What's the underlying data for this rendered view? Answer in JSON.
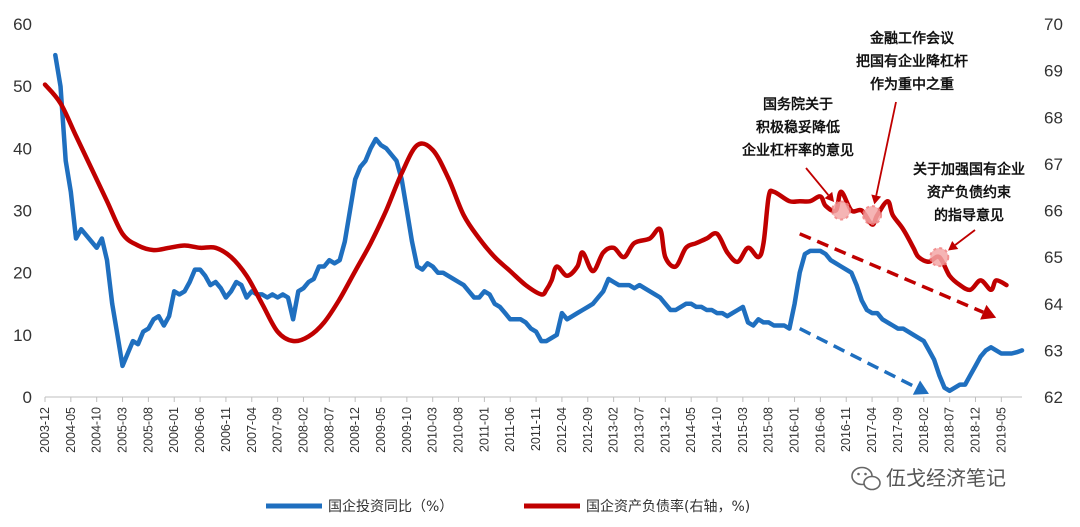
{
  "chart_data": {
    "type": "line",
    "y_left": {
      "min": 0,
      "max": 60,
      "ticks": [
        0,
        10,
        20,
        30,
        40,
        50,
        60
      ]
    },
    "y_right": {
      "min": 62,
      "max": 70,
      "ticks": [
        62,
        63,
        64,
        65,
        66,
        67,
        68,
        69,
        70
      ]
    },
    "x_range": [
      "2003-12",
      "2019-09"
    ],
    "x_ticks": [
      "2003-12",
      "2004-05",
      "2004-10",
      "2005-03",
      "2005-08",
      "2006-01",
      "2006-06",
      "2006-11",
      "2007-04",
      "2007-09",
      "2008-02",
      "2008-07",
      "2008-12",
      "2009-05",
      "2009-10",
      "2010-03",
      "2010-08",
      "2011-01",
      "2011-06",
      "2011-11",
      "2012-04",
      "2012-09",
      "2013-02",
      "2013-07",
      "2013-12",
      "2014-05",
      "2014-10",
      "2015-03",
      "2015-08",
      "2016-01",
      "2016-06",
      "2016-11",
      "2017-04",
      "2017-09",
      "2018-02",
      "2018-07",
      "2018-12",
      "2019-05"
    ],
    "grid": false,
    "legend_position": "bottom",
    "series": [
      {
        "name": "国企投资同比（%）",
        "axis": "left",
        "color": "#1f6fbf",
        "points": [
          [
            "2004-02",
            55
          ],
          [
            "2004-03",
            50
          ],
          [
            "2004-04",
            38
          ],
          [
            "2004-05",
            33
          ],
          [
            "2004-06",
            25.5
          ],
          [
            "2004-07",
            27
          ],
          [
            "2004-08",
            26
          ],
          [
            "2004-09",
            25
          ],
          [
            "2004-10",
            24
          ],
          [
            "2004-11",
            25.5
          ],
          [
            "2004-12",
            22
          ],
          [
            "2005-01",
            15
          ],
          [
            "2005-02",
            10
          ],
          [
            "2005-03",
            5
          ],
          [
            "2005-04",
            7
          ],
          [
            "2005-05",
            9
          ],
          [
            "2005-06",
            8.5
          ],
          [
            "2005-07",
            10.5
          ],
          [
            "2005-08",
            11
          ],
          [
            "2005-09",
            12.5
          ],
          [
            "2005-10",
            13
          ],
          [
            "2005-11",
            11.5
          ],
          [
            "2005-12",
            13
          ],
          [
            "2006-01",
            17
          ],
          [
            "2006-02",
            16.5
          ],
          [
            "2006-03",
            17
          ],
          [
            "2006-04",
            18.5
          ],
          [
            "2006-05",
            20.5
          ],
          [
            "2006-06",
            20.5
          ],
          [
            "2006-07",
            19.5
          ],
          [
            "2006-08",
            18
          ],
          [
            "2006-09",
            18.5
          ],
          [
            "2006-10",
            17.5
          ],
          [
            "2006-11",
            16
          ],
          [
            "2006-12",
            17
          ],
          [
            "2007-01",
            18.5
          ],
          [
            "2007-02",
            18
          ],
          [
            "2007-03",
            16
          ],
          [
            "2007-04",
            17
          ],
          [
            "2007-05",
            16.5
          ],
          [
            "2007-06",
            16.5
          ],
          [
            "2007-07",
            16
          ],
          [
            "2007-08",
            16.5
          ],
          [
            "2007-09",
            16
          ],
          [
            "2007-10",
            16.5
          ],
          [
            "2007-11",
            16
          ],
          [
            "2007-12",
            12.5
          ],
          [
            "2008-01",
            17
          ],
          [
            "2008-02",
            17.5
          ],
          [
            "2008-03",
            18.5
          ],
          [
            "2008-04",
            19
          ],
          [
            "2008-05",
            21
          ],
          [
            "2008-06",
            21
          ],
          [
            "2008-07",
            22
          ],
          [
            "2008-08",
            21.5
          ],
          [
            "2008-09",
            22
          ],
          [
            "2008-10",
            25
          ],
          [
            "2008-11",
            30
          ],
          [
            "2008-12",
            35
          ],
          [
            "2009-01",
            37
          ],
          [
            "2009-02",
            38
          ],
          [
            "2009-03",
            40
          ],
          [
            "2009-04",
            41.5
          ],
          [
            "2009-05",
            40.5
          ],
          [
            "2009-06",
            40
          ],
          [
            "2009-07",
            39
          ],
          [
            "2009-08",
            38
          ],
          [
            "2009-09",
            35
          ],
          [
            "2009-10",
            30
          ],
          [
            "2009-11",
            25
          ],
          [
            "2009-12",
            21
          ],
          [
            "2010-01",
            20.5
          ],
          [
            "2010-02",
            21.5
          ],
          [
            "2010-03",
            21
          ],
          [
            "2010-04",
            20
          ],
          [
            "2010-05",
            20
          ],
          [
            "2010-06",
            19.5
          ],
          [
            "2010-07",
            19
          ],
          [
            "2010-08",
            18.5
          ],
          [
            "2010-09",
            18
          ],
          [
            "2010-10",
            17
          ],
          [
            "2010-11",
            16
          ],
          [
            "2010-12",
            16
          ],
          [
            "2011-01",
            17
          ],
          [
            "2011-02",
            16.5
          ],
          [
            "2011-03",
            15
          ],
          [
            "2011-04",
            14.5
          ],
          [
            "2011-05",
            13.5
          ],
          [
            "2011-06",
            12.5
          ],
          [
            "2011-07",
            12.5
          ],
          [
            "2011-08",
            12.5
          ],
          [
            "2011-09",
            12
          ],
          [
            "2011-10",
            11
          ],
          [
            "2011-11",
            10.5
          ],
          [
            "2011-12",
            9
          ],
          [
            "2012-01",
            9
          ],
          [
            "2012-02",
            9.5
          ],
          [
            "2012-03",
            10
          ],
          [
            "2012-04",
            13.5
          ],
          [
            "2012-05",
            12.5
          ],
          [
            "2012-06",
            13
          ],
          [
            "2012-07",
            13.5
          ],
          [
            "2012-08",
            14
          ],
          [
            "2012-09",
            14.5
          ],
          [
            "2012-10",
            15
          ],
          [
            "2012-11",
            16
          ],
          [
            "2012-12",
            17
          ],
          [
            "2013-01",
            19
          ],
          [
            "2013-02",
            18.5
          ],
          [
            "2013-03",
            18
          ],
          [
            "2013-04",
            18
          ],
          [
            "2013-05",
            18
          ],
          [
            "2013-06",
            17.5
          ],
          [
            "2013-07",
            18
          ],
          [
            "2013-08",
            17.5
          ],
          [
            "2013-09",
            17
          ],
          [
            "2013-10",
            16.5
          ],
          [
            "2013-11",
            16
          ],
          [
            "2013-12",
            15
          ],
          [
            "2014-01",
            14
          ],
          [
            "2014-02",
            14
          ],
          [
            "2014-03",
            14.5
          ],
          [
            "2014-04",
            15
          ],
          [
            "2014-05",
            15
          ],
          [
            "2014-06",
            14.5
          ],
          [
            "2014-07",
            14.5
          ],
          [
            "2014-08",
            14
          ],
          [
            "2014-09",
            14
          ],
          [
            "2014-10",
            13.5
          ],
          [
            "2014-11",
            13.5
          ],
          [
            "2014-12",
            13
          ],
          [
            "2015-01",
            13.5
          ],
          [
            "2015-02",
            14
          ],
          [
            "2015-03",
            14.5
          ],
          [
            "2015-04",
            12
          ],
          [
            "2015-05",
            11.5
          ],
          [
            "2015-06",
            12.5
          ],
          [
            "2015-07",
            12
          ],
          [
            "2015-08",
            12
          ],
          [
            "2015-09",
            11.5
          ],
          [
            "2015-10",
            11.5
          ],
          [
            "2015-11",
            11.5
          ],
          [
            "2015-12",
            11
          ],
          [
            "2016-01",
            15
          ],
          [
            "2016-02",
            20
          ],
          [
            "2016-03",
            23
          ],
          [
            "2016-04",
            23.5
          ],
          [
            "2016-05",
            23.5
          ],
          [
            "2016-06",
            23.5
          ],
          [
            "2016-07",
            23
          ],
          [
            "2016-08",
            22
          ],
          [
            "2016-09",
            21.5
          ],
          [
            "2016-10",
            21
          ],
          [
            "2016-11",
            20.5
          ],
          [
            "2016-12",
            20
          ],
          [
            "2017-01",
            18
          ],
          [
            "2017-02",
            15.5
          ],
          [
            "2017-03",
            14
          ],
          [
            "2017-04",
            13.5
          ],
          [
            "2017-05",
            13.5
          ],
          [
            "2017-06",
            12.5
          ],
          [
            "2017-07",
            12
          ],
          [
            "2017-08",
            11.5
          ],
          [
            "2017-09",
            11
          ],
          [
            "2017-10",
            11
          ],
          [
            "2017-11",
            10.5
          ],
          [
            "2017-12",
            10
          ],
          [
            "2018-01",
            9.5
          ],
          [
            "2018-02",
            9
          ],
          [
            "2018-03",
            7.5
          ],
          [
            "2018-04",
            6
          ],
          [
            "2018-05",
            3.5
          ],
          [
            "2018-06",
            1.5
          ],
          [
            "2018-07",
            1
          ],
          [
            "2018-08",
            1.5
          ],
          [
            "2018-09",
            2
          ],
          [
            "2018-10",
            2
          ],
          [
            "2018-11",
            3.5
          ],
          [
            "2018-12",
            5
          ],
          [
            "2019-01",
            6.5
          ],
          [
            "2019-02",
            7.5
          ],
          [
            "2019-03",
            8
          ],
          [
            "2019-04",
            7.5
          ],
          [
            "2019-05",
            7
          ],
          [
            "2019-06",
            7
          ],
          [
            "2019-07",
            7
          ],
          [
            "2019-08",
            7.2
          ],
          [
            "2019-09",
            7.5
          ]
        ]
      },
      {
        "name": "国企资产负债率(右轴，%)",
        "axis": "right",
        "color": "#c00000",
        "points": [
          [
            "2003-12",
            68.7
          ],
          [
            "2004-03",
            68.3
          ],
          [
            "2004-06",
            67.6
          ],
          [
            "2004-09",
            66.9
          ],
          [
            "2004-12",
            66.2
          ],
          [
            "2005-03",
            65.5
          ],
          [
            "2005-06",
            65.25
          ],
          [
            "2005-09",
            65.15
          ],
          [
            "2005-12",
            65.2
          ],
          [
            "2006-03",
            65.25
          ],
          [
            "2006-06",
            65.2
          ],
          [
            "2006-09",
            65.2
          ],
          [
            "2006-12",
            65.0
          ],
          [
            "2007-03",
            64.6
          ],
          [
            "2007-06",
            64.0
          ],
          [
            "2007-09",
            63.4
          ],
          [
            "2007-12",
            63.2
          ],
          [
            "2008-03",
            63.3
          ],
          [
            "2008-06",
            63.6
          ],
          [
            "2008-09",
            64.1
          ],
          [
            "2008-12",
            64.7
          ],
          [
            "2009-03",
            65.3
          ],
          [
            "2009-06",
            66.0
          ],
          [
            "2009-09",
            66.8
          ],
          [
            "2009-12",
            67.4
          ],
          [
            "2010-03",
            67.3
          ],
          [
            "2010-06",
            66.7
          ],
          [
            "2010-09",
            65.9
          ],
          [
            "2010-12",
            65.4
          ],
          [
            "2011-03",
            65.0
          ],
          [
            "2011-06",
            64.7
          ],
          [
            "2011-09",
            64.4
          ],
          [
            "2011-12",
            64.2
          ],
          [
            "2012-01",
            64.3
          ],
          [
            "2012-02",
            64.5
          ],
          [
            "2012-03",
            64.8
          ],
          [
            "2012-05",
            64.6
          ],
          [
            "2012-07",
            64.8
          ],
          [
            "2012-08",
            65.1
          ],
          [
            "2012-10",
            64.7
          ],
          [
            "2012-12",
            65.1
          ],
          [
            "2013-02",
            65.2
          ],
          [
            "2013-04",
            65.0
          ],
          [
            "2013-06",
            65.3
          ],
          [
            "2013-09",
            65.4
          ],
          [
            "2013-11",
            65.6
          ],
          [
            "2013-12",
            65.0
          ],
          [
            "2014-02",
            64.8
          ],
          [
            "2014-04",
            65.2
          ],
          [
            "2014-06",
            65.3
          ],
          [
            "2014-08",
            65.4
          ],
          [
            "2014-10",
            65.5
          ],
          [
            "2014-12",
            65.1
          ],
          [
            "2015-02",
            64.9
          ],
          [
            "2015-04",
            65.2
          ],
          [
            "2015-06",
            65.0
          ],
          [
            "2015-07",
            65.3
          ],
          [
            "2015-08",
            66.3
          ],
          [
            "2015-09",
            66.4
          ],
          [
            "2015-12",
            66.2
          ],
          [
            "2016-02",
            66.2
          ],
          [
            "2016-04",
            66.2
          ],
          [
            "2016-06",
            66.3
          ],
          [
            "2016-07",
            66.1
          ],
          [
            "2016-09",
            66.0
          ],
          [
            "2016-10",
            66.4
          ],
          [
            "2016-12",
            66.0
          ],
          [
            "2017-02",
            66.0
          ],
          [
            "2017-04",
            65.7
          ],
          [
            "2017-05",
            65.9
          ],
          [
            "2017-07",
            66.2
          ],
          [
            "2017-08",
            65.9
          ],
          [
            "2017-10",
            65.6
          ],
          [
            "2017-12",
            65.2
          ],
          [
            "2018-01",
            65.0
          ],
          [
            "2018-03",
            64.9
          ],
          [
            "2018-05",
            65.0
          ],
          [
            "2018-07",
            64.6
          ],
          [
            "2018-09",
            64.4
          ],
          [
            "2018-11",
            64.3
          ],
          [
            "2019-01",
            64.5
          ],
          [
            "2019-03",
            64.3
          ],
          [
            "2019-04",
            64.5
          ],
          [
            "2019-06",
            64.4
          ]
        ]
      }
    ],
    "annotations": [
      {
        "lines": [
          "国务院关于",
          "积极稳妥降低",
          "企业杠杆率的意见"
        ],
        "target_series": "国企资产负债率(右轴，%)",
        "date": "2016-10",
        "value": 66.0
      },
      {
        "lines": [
          "金融工作会议",
          "把国有企业降杠杆",
          "作为重中之重"
        ],
        "target_series": "国企资产负债率(右轴，%)",
        "date": "2017-04",
        "value": 65.9
      },
      {
        "lines": [
          "关于加强国有企业",
          "资产负债约束",
          "的指导意见"
        ],
        "target_series": "国企资产负债率(右轴，%)",
        "date": "2018-05",
        "value": 65.0
      }
    ],
    "trend_arrows": [
      {
        "axis": "right",
        "from": [
          "2016-02",
          65.5
        ],
        "to": [
          "2019-04",
          63.7
        ],
        "color": "#c00000"
      },
      {
        "axis": "left",
        "from": [
          "2016-02",
          11
        ],
        "to": [
          "2018-03",
          0.5
        ],
        "color": "#1f6fbf"
      }
    ]
  },
  "watermark": "伍戈经济笔记"
}
